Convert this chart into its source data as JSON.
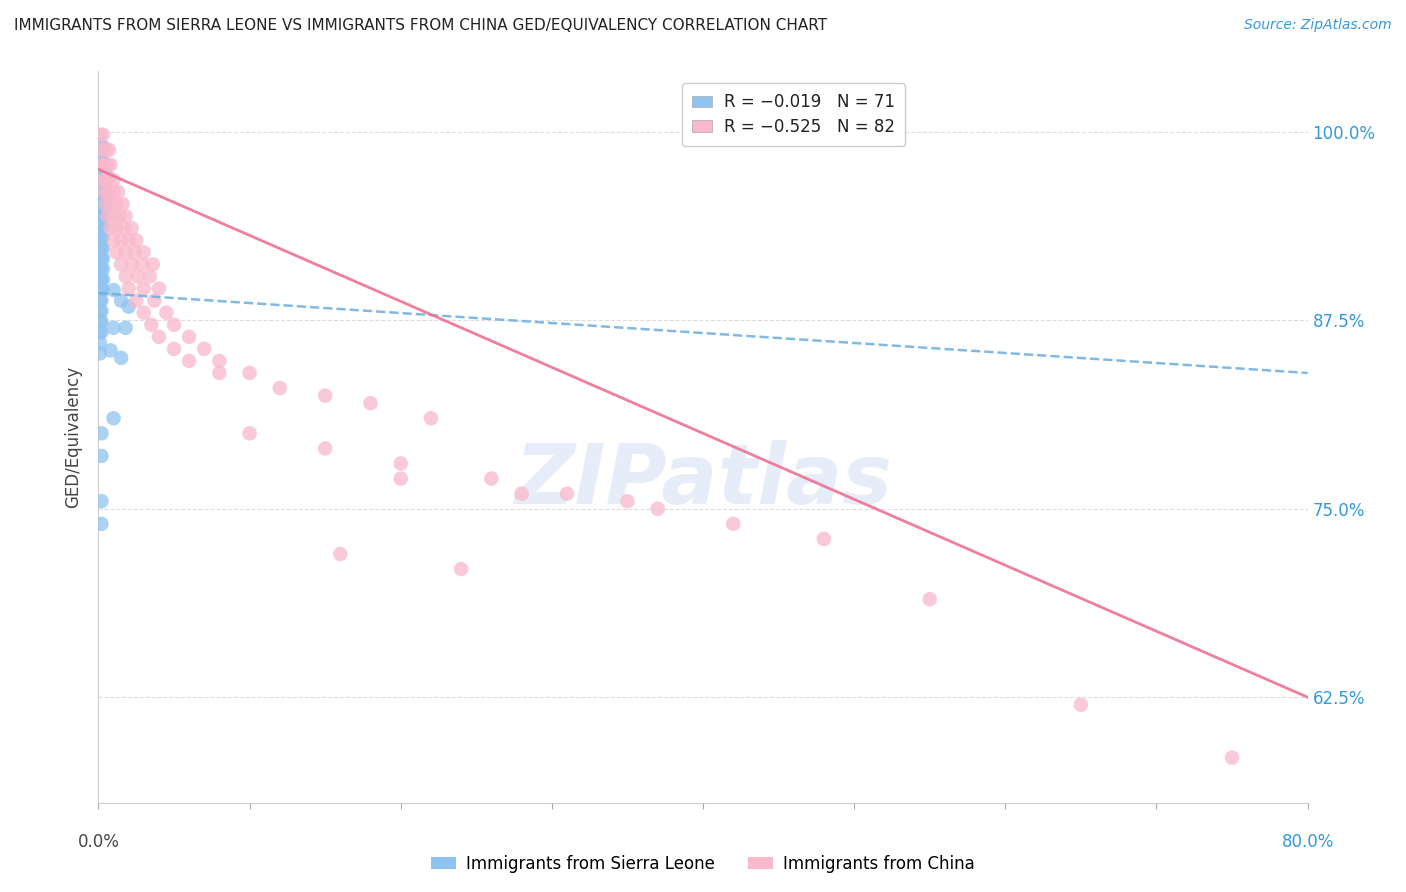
{
  "title": "IMMIGRANTS FROM SIERRA LEONE VS IMMIGRANTS FROM CHINA GED/EQUIVALENCY CORRELATION CHART",
  "source": "Source: ZipAtlas.com",
  "ylabel": "GED/Equivalency",
  "ytick_labels": [
    "62.5%",
    "75.0%",
    "87.5%",
    "100.0%"
  ],
  "ytick_values": [
    0.625,
    0.75,
    0.875,
    1.0
  ],
  "xmin": 0.0,
  "xmax": 0.8,
  "ymin": 0.555,
  "ymax": 1.04,
  "sierra_leone_R": -0.019,
  "sierra_leone_N": 71,
  "china_R": -0.525,
  "china_N": 82,
  "sierra_leone_color": "#90c4f0",
  "china_color": "#f9b8cc",
  "sierra_leone_line_color": "#6aaee0",
  "china_line_color": "#f07090",
  "watermark": "ZIPatlas",
  "watermark_color": "#c8d8f0",
  "sl_trend_x0": 0.0,
  "sl_trend_y0": 0.893,
  "sl_trend_x1": 0.8,
  "sl_trend_y1": 0.84,
  "ch_trend_x0": 0.0,
  "ch_trend_y0": 0.975,
  "ch_trend_x1": 0.8,
  "ch_trend_y1": 0.625,
  "sierra_leone_points": [
    [
      0.001,
      0.99
    ],
    [
      0.003,
      0.99
    ],
    [
      0.001,
      0.98
    ],
    [
      0.002,
      0.98
    ],
    [
      0.003,
      0.98
    ],
    [
      0.001,
      0.972
    ],
    [
      0.002,
      0.972
    ],
    [
      0.003,
      0.972
    ],
    [
      0.005,
      0.972
    ],
    [
      0.001,
      0.965
    ],
    [
      0.002,
      0.965
    ],
    [
      0.003,
      0.965
    ],
    [
      0.004,
      0.965
    ],
    [
      0.001,
      0.958
    ],
    [
      0.002,
      0.958
    ],
    [
      0.003,
      0.958
    ],
    [
      0.004,
      0.958
    ],
    [
      0.001,
      0.951
    ],
    [
      0.002,
      0.951
    ],
    [
      0.003,
      0.951
    ],
    [
      0.005,
      0.951
    ],
    [
      0.001,
      0.944
    ],
    [
      0.002,
      0.944
    ],
    [
      0.003,
      0.944
    ],
    [
      0.001,
      0.937
    ],
    [
      0.002,
      0.937
    ],
    [
      0.003,
      0.937
    ],
    [
      0.001,
      0.93
    ],
    [
      0.002,
      0.93
    ],
    [
      0.003,
      0.93
    ],
    [
      0.001,
      0.923
    ],
    [
      0.002,
      0.923
    ],
    [
      0.003,
      0.923
    ],
    [
      0.001,
      0.916
    ],
    [
      0.002,
      0.916
    ],
    [
      0.003,
      0.916
    ],
    [
      0.001,
      0.909
    ],
    [
      0.002,
      0.909
    ],
    [
      0.003,
      0.909
    ],
    [
      0.001,
      0.902
    ],
    [
      0.002,
      0.902
    ],
    [
      0.003,
      0.902
    ],
    [
      0.001,
      0.895
    ],
    [
      0.002,
      0.895
    ],
    [
      0.003,
      0.895
    ],
    [
      0.001,
      0.888
    ],
    [
      0.002,
      0.888
    ],
    [
      0.001,
      0.881
    ],
    [
      0.002,
      0.881
    ],
    [
      0.001,
      0.874
    ],
    [
      0.002,
      0.874
    ],
    [
      0.001,
      0.867
    ],
    [
      0.002,
      0.867
    ],
    [
      0.001,
      0.86
    ],
    [
      0.001,
      0.853
    ],
    [
      0.01,
      0.895
    ],
    [
      0.015,
      0.888
    ],
    [
      0.02,
      0.884
    ],
    [
      0.01,
      0.87
    ],
    [
      0.018,
      0.87
    ],
    [
      0.008,
      0.855
    ],
    [
      0.015,
      0.85
    ],
    [
      0.002,
      0.8
    ],
    [
      0.002,
      0.785
    ],
    [
      0.01,
      0.81
    ],
    [
      0.002,
      0.755
    ],
    [
      0.002,
      0.74
    ]
  ],
  "china_points": [
    [
      0.001,
      0.998
    ],
    [
      0.003,
      0.998
    ],
    [
      0.002,
      0.988
    ],
    [
      0.005,
      0.988
    ],
    [
      0.007,
      0.988
    ],
    [
      0.002,
      0.978
    ],
    [
      0.004,
      0.978
    ],
    [
      0.006,
      0.978
    ],
    [
      0.008,
      0.978
    ],
    [
      0.003,
      0.968
    ],
    [
      0.005,
      0.968
    ],
    [
      0.007,
      0.968
    ],
    [
      0.01,
      0.968
    ],
    [
      0.004,
      0.96
    ],
    [
      0.007,
      0.96
    ],
    [
      0.01,
      0.96
    ],
    [
      0.013,
      0.96
    ],
    [
      0.005,
      0.952
    ],
    [
      0.008,
      0.952
    ],
    [
      0.012,
      0.952
    ],
    [
      0.016,
      0.952
    ],
    [
      0.006,
      0.944
    ],
    [
      0.01,
      0.944
    ],
    [
      0.014,
      0.944
    ],
    [
      0.018,
      0.944
    ],
    [
      0.008,
      0.936
    ],
    [
      0.012,
      0.936
    ],
    [
      0.017,
      0.936
    ],
    [
      0.022,
      0.936
    ],
    [
      0.01,
      0.928
    ],
    [
      0.015,
      0.928
    ],
    [
      0.02,
      0.928
    ],
    [
      0.025,
      0.928
    ],
    [
      0.012,
      0.92
    ],
    [
      0.018,
      0.92
    ],
    [
      0.024,
      0.92
    ],
    [
      0.03,
      0.92
    ],
    [
      0.015,
      0.912
    ],
    [
      0.022,
      0.912
    ],
    [
      0.029,
      0.912
    ],
    [
      0.036,
      0.912
    ],
    [
      0.018,
      0.904
    ],
    [
      0.026,
      0.904
    ],
    [
      0.034,
      0.904
    ],
    [
      0.02,
      0.896
    ],
    [
      0.03,
      0.896
    ],
    [
      0.04,
      0.896
    ],
    [
      0.025,
      0.888
    ],
    [
      0.037,
      0.888
    ],
    [
      0.03,
      0.88
    ],
    [
      0.045,
      0.88
    ],
    [
      0.035,
      0.872
    ],
    [
      0.05,
      0.872
    ],
    [
      0.04,
      0.864
    ],
    [
      0.06,
      0.864
    ],
    [
      0.05,
      0.856
    ],
    [
      0.07,
      0.856
    ],
    [
      0.06,
      0.848
    ],
    [
      0.08,
      0.848
    ],
    [
      0.08,
      0.84
    ],
    [
      0.1,
      0.84
    ],
    [
      0.12,
      0.83
    ],
    [
      0.15,
      0.825
    ],
    [
      0.18,
      0.82
    ],
    [
      0.22,
      0.81
    ],
    [
      0.1,
      0.8
    ],
    [
      0.15,
      0.79
    ],
    [
      0.2,
      0.78
    ],
    [
      0.26,
      0.77
    ],
    [
      0.31,
      0.76
    ],
    [
      0.37,
      0.75
    ],
    [
      0.42,
      0.74
    ],
    [
      0.48,
      0.73
    ],
    [
      0.2,
      0.77
    ],
    [
      0.28,
      0.76
    ],
    [
      0.35,
      0.755
    ],
    [
      0.16,
      0.72
    ],
    [
      0.24,
      0.71
    ],
    [
      0.55,
      0.69
    ],
    [
      0.65,
      0.62
    ],
    [
      0.75,
      0.585
    ]
  ]
}
